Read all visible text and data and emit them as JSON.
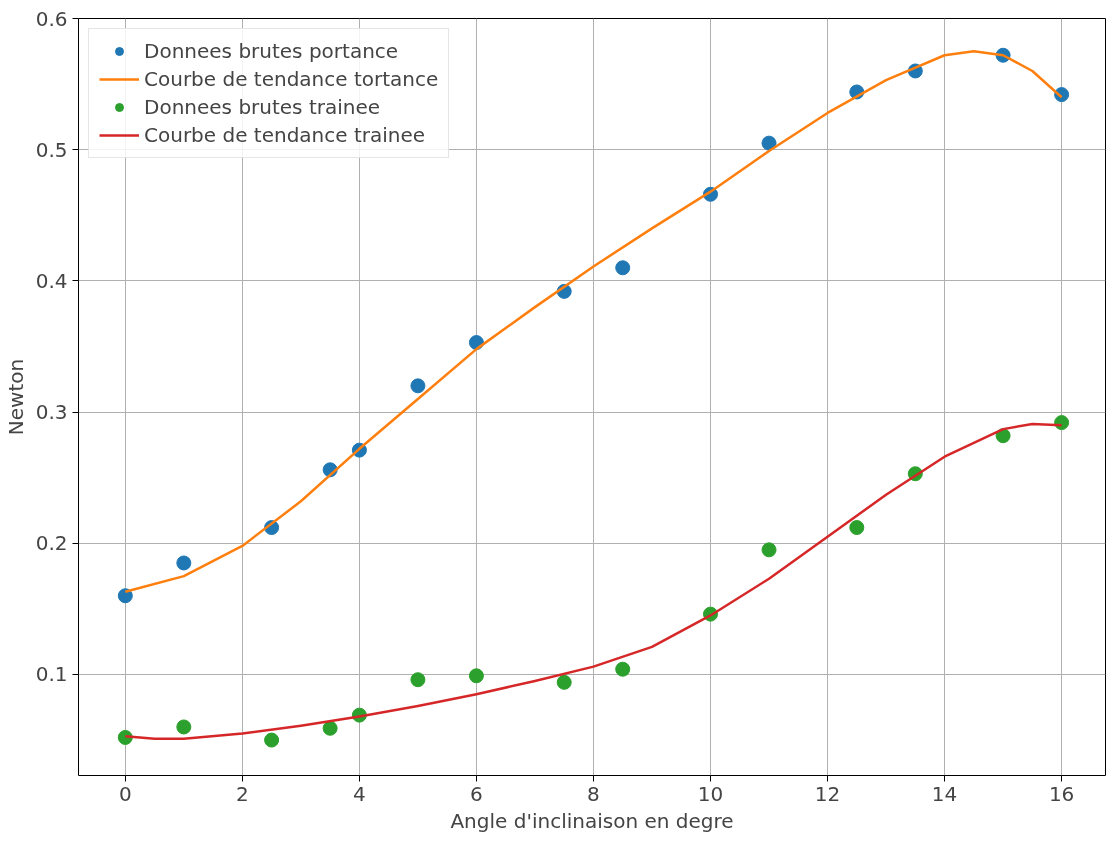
{
  "chart_data": {
    "type": "scatter",
    "xlabel": "Angle d'inclinaison en degre",
    "ylabel": "Newton",
    "xlim": [
      -0.8,
      16.75
    ],
    "ylim": [
      0.023,
      0.6
    ],
    "xticks": [
      0,
      2,
      4,
      6,
      8,
      10,
      12,
      14,
      16
    ],
    "yticks": [
      0.1,
      0.2,
      0.3,
      0.4,
      0.5,
      0.6
    ],
    "grid": true,
    "legend": "top left",
    "series": [
      {
        "name": "Donnees brutes portance",
        "marker": "circle",
        "color": "#1f77b4",
        "x": [
          0,
          1,
          2.5,
          3.5,
          4,
          5,
          6,
          7.5,
          8.5,
          10,
          11,
          12.5,
          13.5,
          15,
          16
        ],
        "values": [
          0.16,
          0.185,
          0.212,
          0.256,
          0.271,
          0.32,
          0.353,
          0.392,
          0.41,
          0.466,
          0.505,
          0.544,
          0.56,
          0.572,
          0.542
        ]
      },
      {
        "name": "Courbe de tendance tortance",
        "type": "line",
        "color": "#ff7f0e",
        "x": [
          0,
          1,
          2,
          3,
          4,
          5,
          6,
          7,
          8,
          9,
          10,
          11,
          12,
          13,
          14,
          14.5,
          15,
          15.5,
          16
        ],
        "values": [
          0.163,
          0.175,
          0.198,
          0.232,
          0.272,
          0.31,
          0.348,
          0.38,
          0.411,
          0.44,
          0.468,
          0.499,
          0.528,
          0.553,
          0.572,
          0.575,
          0.572,
          0.56,
          0.54
        ]
      },
      {
        "name": "Donnees brutes trainee",
        "marker": "circle",
        "color": "#2ca02c",
        "x": [
          0,
          1,
          2.5,
          3.5,
          4,
          5,
          6,
          7.5,
          8.5,
          10,
          11,
          12.5,
          13.5,
          15,
          16
        ],
        "values": [
          0.052,
          0.06,
          0.05,
          0.059,
          0.069,
          0.096,
          0.099,
          0.094,
          0.104,
          0.146,
          0.195,
          0.212,
          0.253,
          0.282,
          0.292
        ]
      },
      {
        "name": "Courbe de tendance trainee",
        "type": "line",
        "color": "#d62728",
        "x": [
          0,
          0.5,
          1,
          2,
          3,
          4,
          5,
          6,
          7,
          8,
          9,
          10,
          11,
          12,
          13,
          14,
          15,
          15.5,
          16
        ],
        "values": [
          0.053,
          0.051,
          0.051,
          0.055,
          0.061,
          0.068,
          0.076,
          0.085,
          0.095,
          0.106,
          0.121,
          0.145,
          0.173,
          0.205,
          0.237,
          0.266,
          0.287,
          0.291,
          0.29
        ]
      }
    ]
  }
}
